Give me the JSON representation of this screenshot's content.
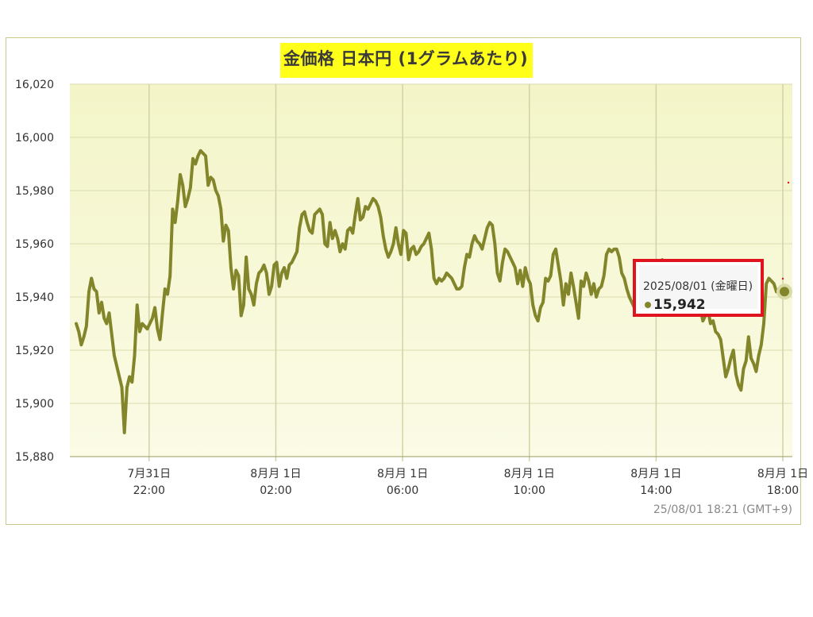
{
  "chart_data": {
    "type": "line",
    "title": "金価格 日本円 (1グラムあたり)",
    "footnote": "25/08/01 18:21 (GMT+9)",
    "ylim": [
      15880,
      16020
    ],
    "yticks": [
      "16,020",
      "16,000",
      "15,980",
      "15,960",
      "15,940",
      "15,920",
      "15,900",
      "15,880"
    ],
    "ytick_values": [
      16020,
      16000,
      15980,
      15960,
      15940,
      15920,
      15900,
      15880
    ],
    "xlim_hours": [
      19.5,
      42.3
    ],
    "xticks": [
      {
        "line1": "7月31日",
        "line2": "22:00",
        "t": 22
      },
      {
        "line1": "8月月 1日",
        "line2": "02:00",
        "t": 26
      },
      {
        "line1": "8月月 1日",
        "line2": "06:00",
        "t": 30
      },
      {
        "line1": "8月月 1日",
        "line2": "10:00",
        "t": 34
      },
      {
        "line1": "8月月 1日",
        "line2": "14:00",
        "t": 38
      },
      {
        "line1": "8月月 1日",
        "line2": "18:00",
        "t": 42
      }
    ],
    "line_color": "#82852a",
    "plot_bg_top": "#f3f5c8",
    "plot_bg_bottom": "#fbfbe6",
    "series": [
      {
        "values": [
          15930,
          15927,
          15922,
          15925,
          15929,
          15942,
          15947,
          15943,
          15942,
          15934,
          15938,
          15932,
          15930,
          15934,
          15926,
          15918,
          15914,
          15910,
          15906,
          15889,
          15906,
          15910,
          15908,
          15918,
          15937,
          15927,
          15930,
          15929,
          15928,
          15930,
          15932,
          15936,
          15928,
          15924,
          15934,
          15943,
          15941,
          15948,
          15973,
          15968,
          15976,
          15986,
          15982,
          15974,
          15977,
          15981,
          15992,
          15990,
          15993,
          15995,
          15994,
          15993,
          15982,
          15985,
          15984,
          15980,
          15978,
          15973,
          15961,
          15967,
          15965,
          15951,
          15943,
          15950,
          15948,
          15933,
          15937,
          15955,
          15943,
          15941,
          15937,
          15945,
          15949,
          15950,
          15952,
          15949,
          15941,
          15944,
          15952,
          15953,
          15944,
          15949,
          15951,
          15947,
          15952,
          15953,
          15955,
          15957,
          15966,
          15971,
          15972,
          15968,
          15965,
          15964,
          15971,
          15972,
          15973,
          15971,
          15960,
          15959,
          15968,
          15962,
          15965,
          15962,
          15957,
          15960,
          15958,
          15965,
          15966,
          15964,
          15971,
          15977,
          15969,
          15970,
          15974,
          15973,
          15975,
          15977,
          15976,
          15974,
          15970,
          15963,
          15958,
          15955,
          15957,
          15960,
          15966,
          15960,
          15956,
          15965,
          15964,
          15954,
          15958,
          15959,
          15956,
          15957,
          15959,
          15960,
          15962,
          15964,
          15958,
          15947,
          15945,
          15947,
          15946,
          15947,
          15949,
          15948,
          15947,
          15945,
          15943,
          15943,
          15944,
          15951,
          15956,
          15955,
          15960,
          15963,
          15961,
          15960,
          15958,
          15962,
          15966,
          15968,
          15967,
          15960,
          15949,
          15946,
          15953,
          15958,
          15957,
          15955,
          15953,
          15951,
          15945,
          15950,
          15944,
          15951,
          15947,
          15945,
          15937,
          15933,
          15931,
          15936,
          15938,
          15947,
          15946,
          15948,
          15956,
          15958,
          15952,
          15946,
          15937,
          15945,
          15941,
          15949,
          15944,
          15938,
          15932,
          15946,
          15944,
          15949,
          15946,
          15941,
          15945,
          15940,
          15943,
          15944,
          15948,
          15956,
          15958,
          15957,
          15958,
          15958,
          15955,
          15949,
          15947,
          15943,
          15940,
          15938,
          15936,
          15940,
          15938,
          15939,
          15941,
          15936,
          15935,
          15938,
          15936,
          15943,
          15946,
          15954,
          15950,
          15947,
          15942,
          15940,
          15946,
          15939,
          15941,
          15937,
          15936,
          15938,
          15945,
          15946,
          15940,
          15937,
          15936,
          15931,
          15933,
          15935,
          15930,
          15931,
          15927,
          15926,
          15924,
          15917,
          15910,
          15913,
          15917,
          15920,
          15911,
          15907,
          15905,
          15913,
          15916,
          15925,
          15917,
          15915,
          15912,
          15918,
          15922,
          15930,
          15945,
          15947,
          15946,
          15945,
          15942
        ]
      }
    ]
  },
  "tooltip": {
    "date": "2025/08/01 (金曜日)",
    "value": "15,942"
  }
}
